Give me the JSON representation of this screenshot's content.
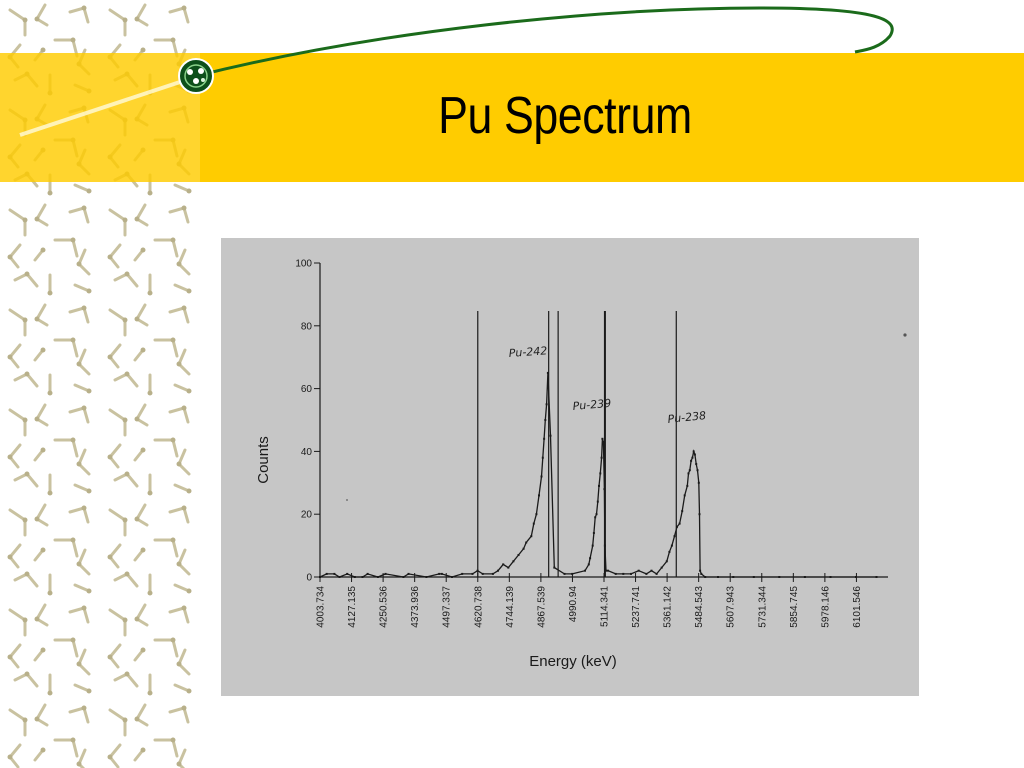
{
  "slide": {
    "title": "Pu Spectrum"
  },
  "colors": {
    "band": "#ffcc00",
    "arc": "#1b6b1b",
    "photo_bg": "#c6c6c6",
    "pattern": "#c9c2a0"
  },
  "icons": {
    "logo": "atom-orbit-icon"
  },
  "chart_data": {
    "type": "line",
    "title": "",
    "xlabel": "Energy (keV)",
    "ylabel": "Counts",
    "ylim": [
      0,
      100
    ],
    "yticks": [
      0,
      20,
      40,
      60,
      80,
      100
    ],
    "xlim": [
      4003.734,
      6225.0
    ],
    "xticks": [
      "4003.734",
      "4127.135",
      "4250.536",
      "4373.936",
      "4497.337",
      "4620.738",
      "4744.139",
      "4867.539",
      "4990.94",
      "5114.341",
      "5237.741",
      "5361.142",
      "5484.543",
      "5607.943",
      "5731.344",
      "5854.745",
      "5978.146",
      "6101.546"
    ],
    "series": [
      {
        "name": "",
        "x": [
          4003.734,
          4030,
          4060,
          4080,
          4110,
          4140,
          4170,
          4190,
          4230,
          4260,
          4330,
          4350,
          4420,
          4470,
          4480,
          4520,
          4560,
          4600,
          4620,
          4640,
          4680,
          4700,
          4720,
          4740,
          4760,
          4780,
          4800,
          4810,
          4830,
          4840,
          4850,
          4860,
          4870,
          4875,
          4880,
          4885,
          4890,
          4895,
          4905,
          4920,
          4960,
          4990,
          5040,
          5055,
          5060,
          5070,
          5075,
          5080,
          5085,
          5090,
          5095,
          5100,
          5105,
          5108,
          5112,
          5116,
          5118,
          5122,
          5130,
          5160,
          5190,
          5220,
          5250,
          5280,
          5300,
          5320,
          5340,
          5360,
          5370,
          5380,
          5390,
          5400,
          5410,
          5420,
          5430,
          5440,
          5445,
          5450,
          5455,
          5460,
          5465,
          5470,
          5475,
          5480,
          5485,
          5488,
          5490,
          5495,
          5510,
          5560,
          5620,
          5700,
          5800,
          5900,
          6000,
          6100,
          6180
        ],
        "y": [
          0,
          1,
          1,
          0,
          1,
          0,
          0,
          1,
          0,
          1,
          0,
          1,
          0,
          1,
          1,
          0,
          1,
          1,
          2,
          1,
          1,
          2,
          4,
          3,
          5,
          7,
          9,
          11,
          13,
          17,
          20,
          26,
          32,
          38,
          44,
          50,
          55,
          65,
          45,
          3,
          1,
          1,
          2,
          4,
          6,
          10,
          14,
          19,
          20,
          24,
          29,
          33,
          38,
          44,
          43,
          28,
          10,
          2,
          2,
          1,
          1,
          1,
          2,
          1,
          2,
          1,
          3,
          5,
          8,
          10,
          13,
          16,
          17,
          21,
          26,
          29,
          33,
          34,
          37,
          38,
          40,
          39,
          36,
          34,
          30,
          20,
          2,
          1,
          0,
          0,
          0,
          0,
          0,
          0,
          0,
          0,
          0
        ]
      }
    ],
    "annotations": [
      "Pu-242",
      "Pu-239",
      "Pu-238"
    ],
    "markers_x": [
      4620.738,
      4898,
      4935,
      5118,
      5397
    ]
  }
}
